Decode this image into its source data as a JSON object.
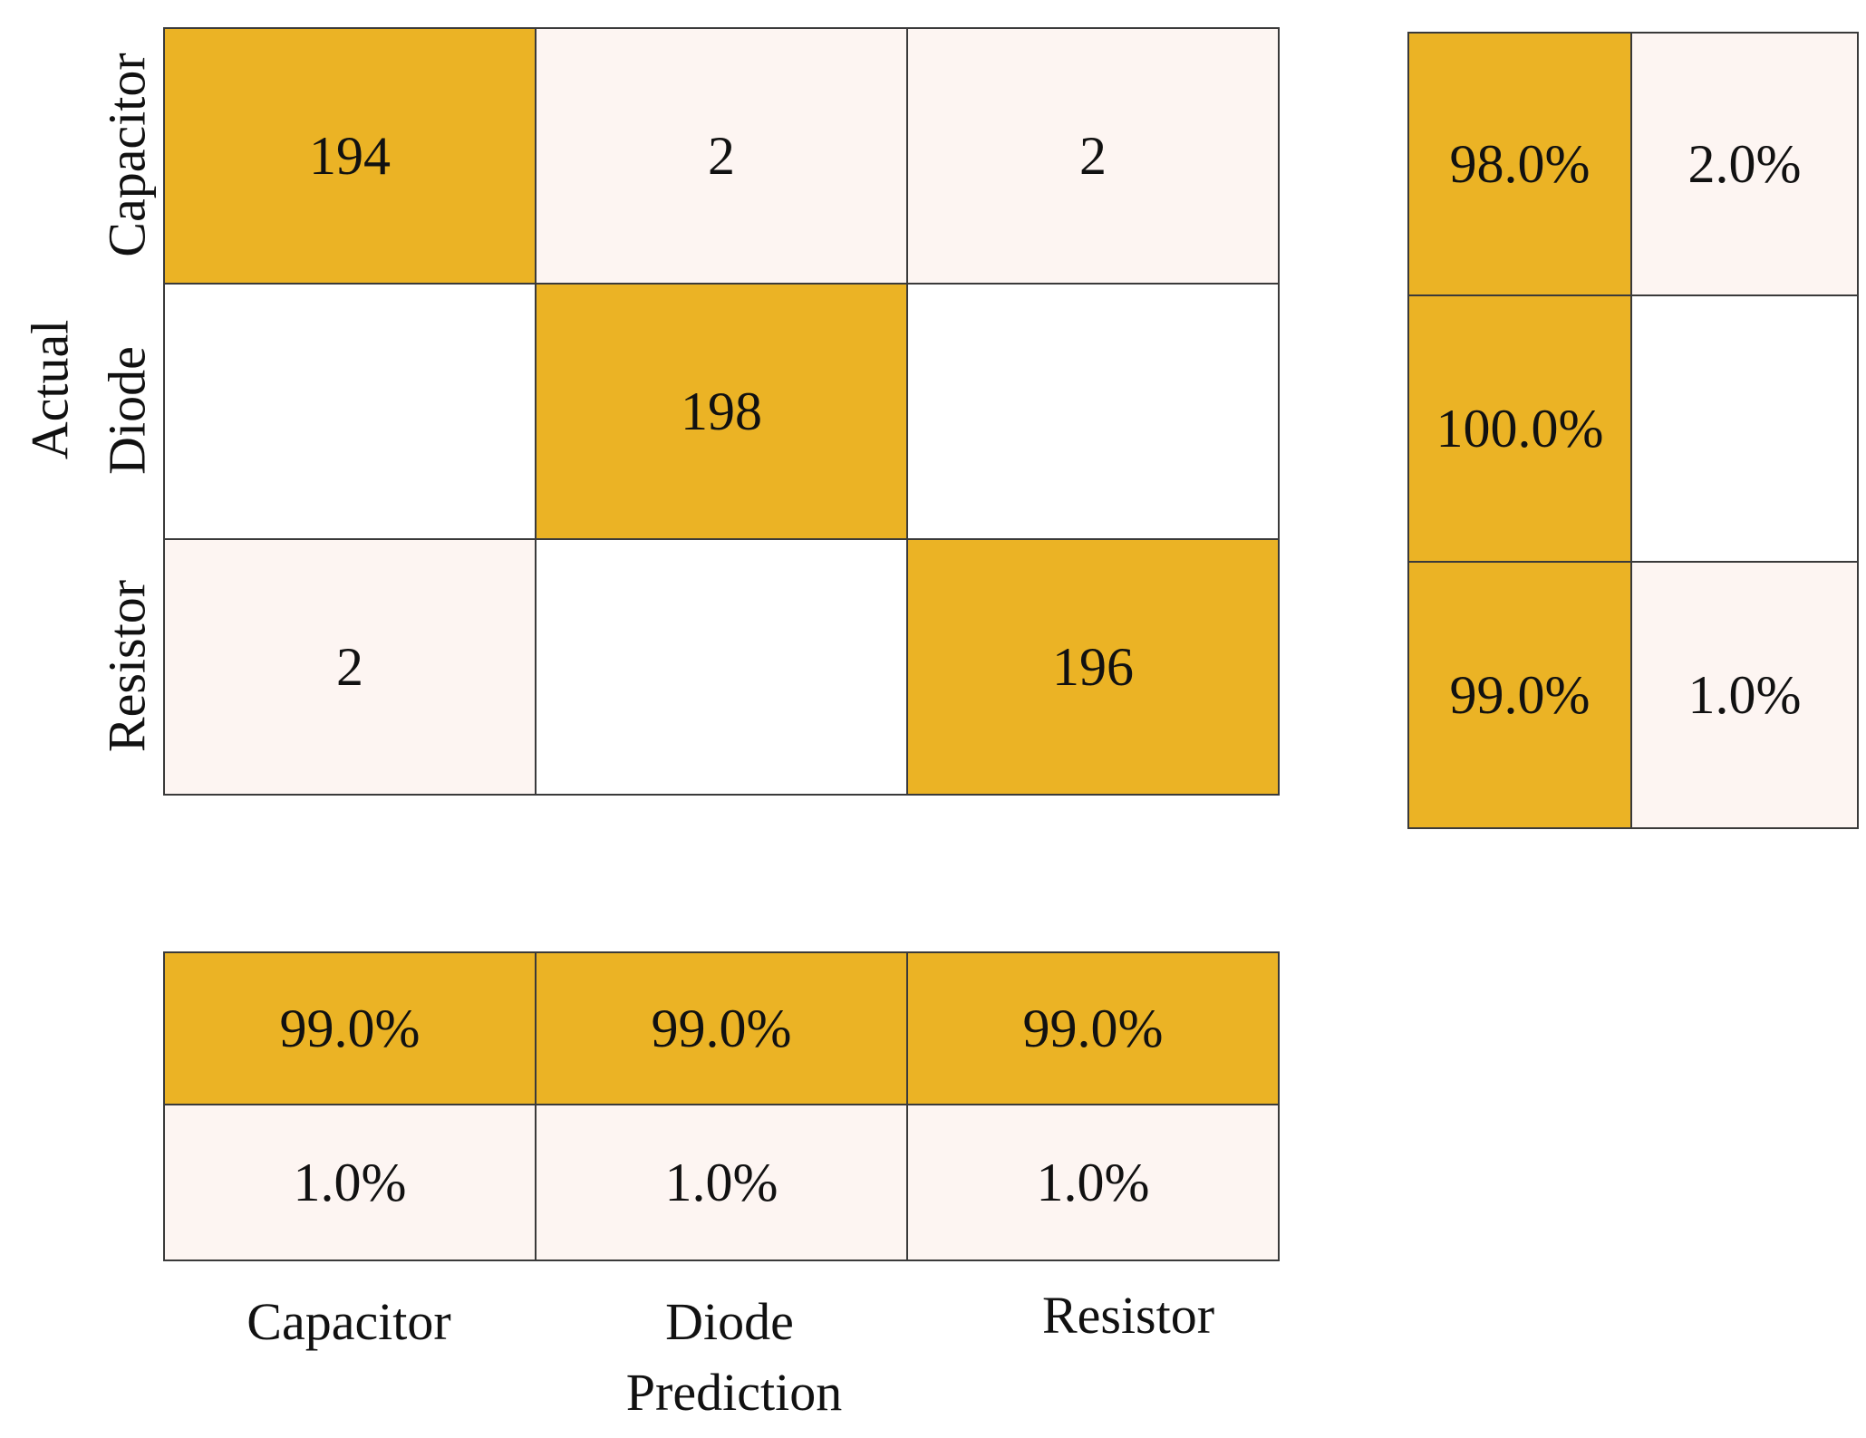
{
  "chart_data": {
    "type": "heatmap",
    "title": "",
    "xlabel": "Prediction",
    "ylabel": "Actual",
    "classes": [
      "Capacitor",
      "Diode",
      "Resistor"
    ],
    "matrix": [
      [
        "194",
        "2",
        "2"
      ],
      [
        "",
        "198",
        ""
      ],
      [
        "2",
        "",
        "196"
      ]
    ],
    "row_summary": [
      [
        "98.0%",
        "2.0%"
      ],
      [
        "100.0%",
        ""
      ],
      [
        "99.0%",
        "1.0%"
      ]
    ],
    "column_summary": [
      [
        "99.0%",
        "99.0%",
        "99.0%"
      ],
      [
        "1.0%",
        "1.0%",
        "1.0%"
      ]
    ]
  },
  "colors": {
    "correct": "#ebb325",
    "incorrect": "#fdf5f2",
    "empty": "#ffffff",
    "grid": "#3a3a3a"
  }
}
